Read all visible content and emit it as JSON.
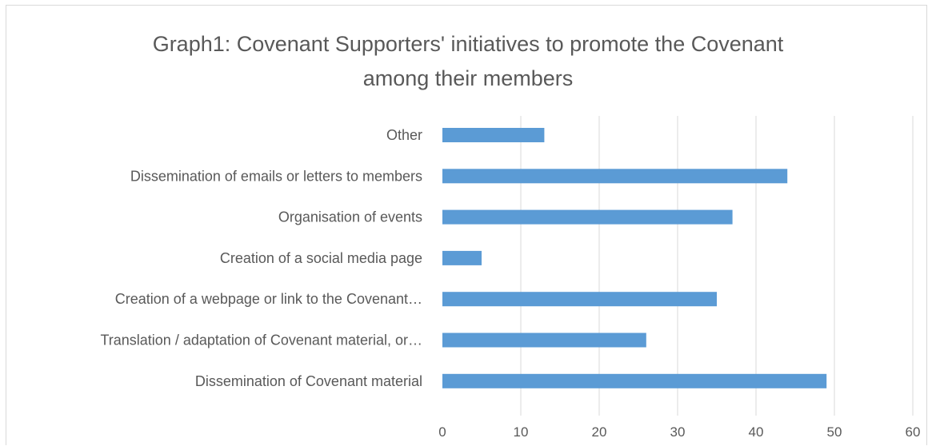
{
  "chart_data": {
    "type": "bar",
    "orientation": "horizontal",
    "title_lines": [
      "Graph1: Covenant Supporters' initiatives to promote the Covenant",
      "among their members"
    ],
    "categories": [
      "Other",
      "Dissemination of emails or letters to members",
      "Organisation of events",
      "Creation of a  social media page",
      "Creation of a webpage or link to the Covenant…",
      "Translation / adaptation of Covenant material, or…",
      "Dissemination of Covenant material"
    ],
    "values": [
      13,
      44,
      37,
      5,
      35,
      26,
      49
    ],
    "xlim": [
      0,
      60
    ],
    "xticks": [
      "0",
      "10",
      "20",
      "30",
      "40",
      "50",
      "60"
    ],
    "xlabel": "",
    "ylabel": "",
    "grid": "vertical",
    "legend": "none",
    "bar_color": "#5b9bd5",
    "grid_color": "#d9d9d9"
  }
}
